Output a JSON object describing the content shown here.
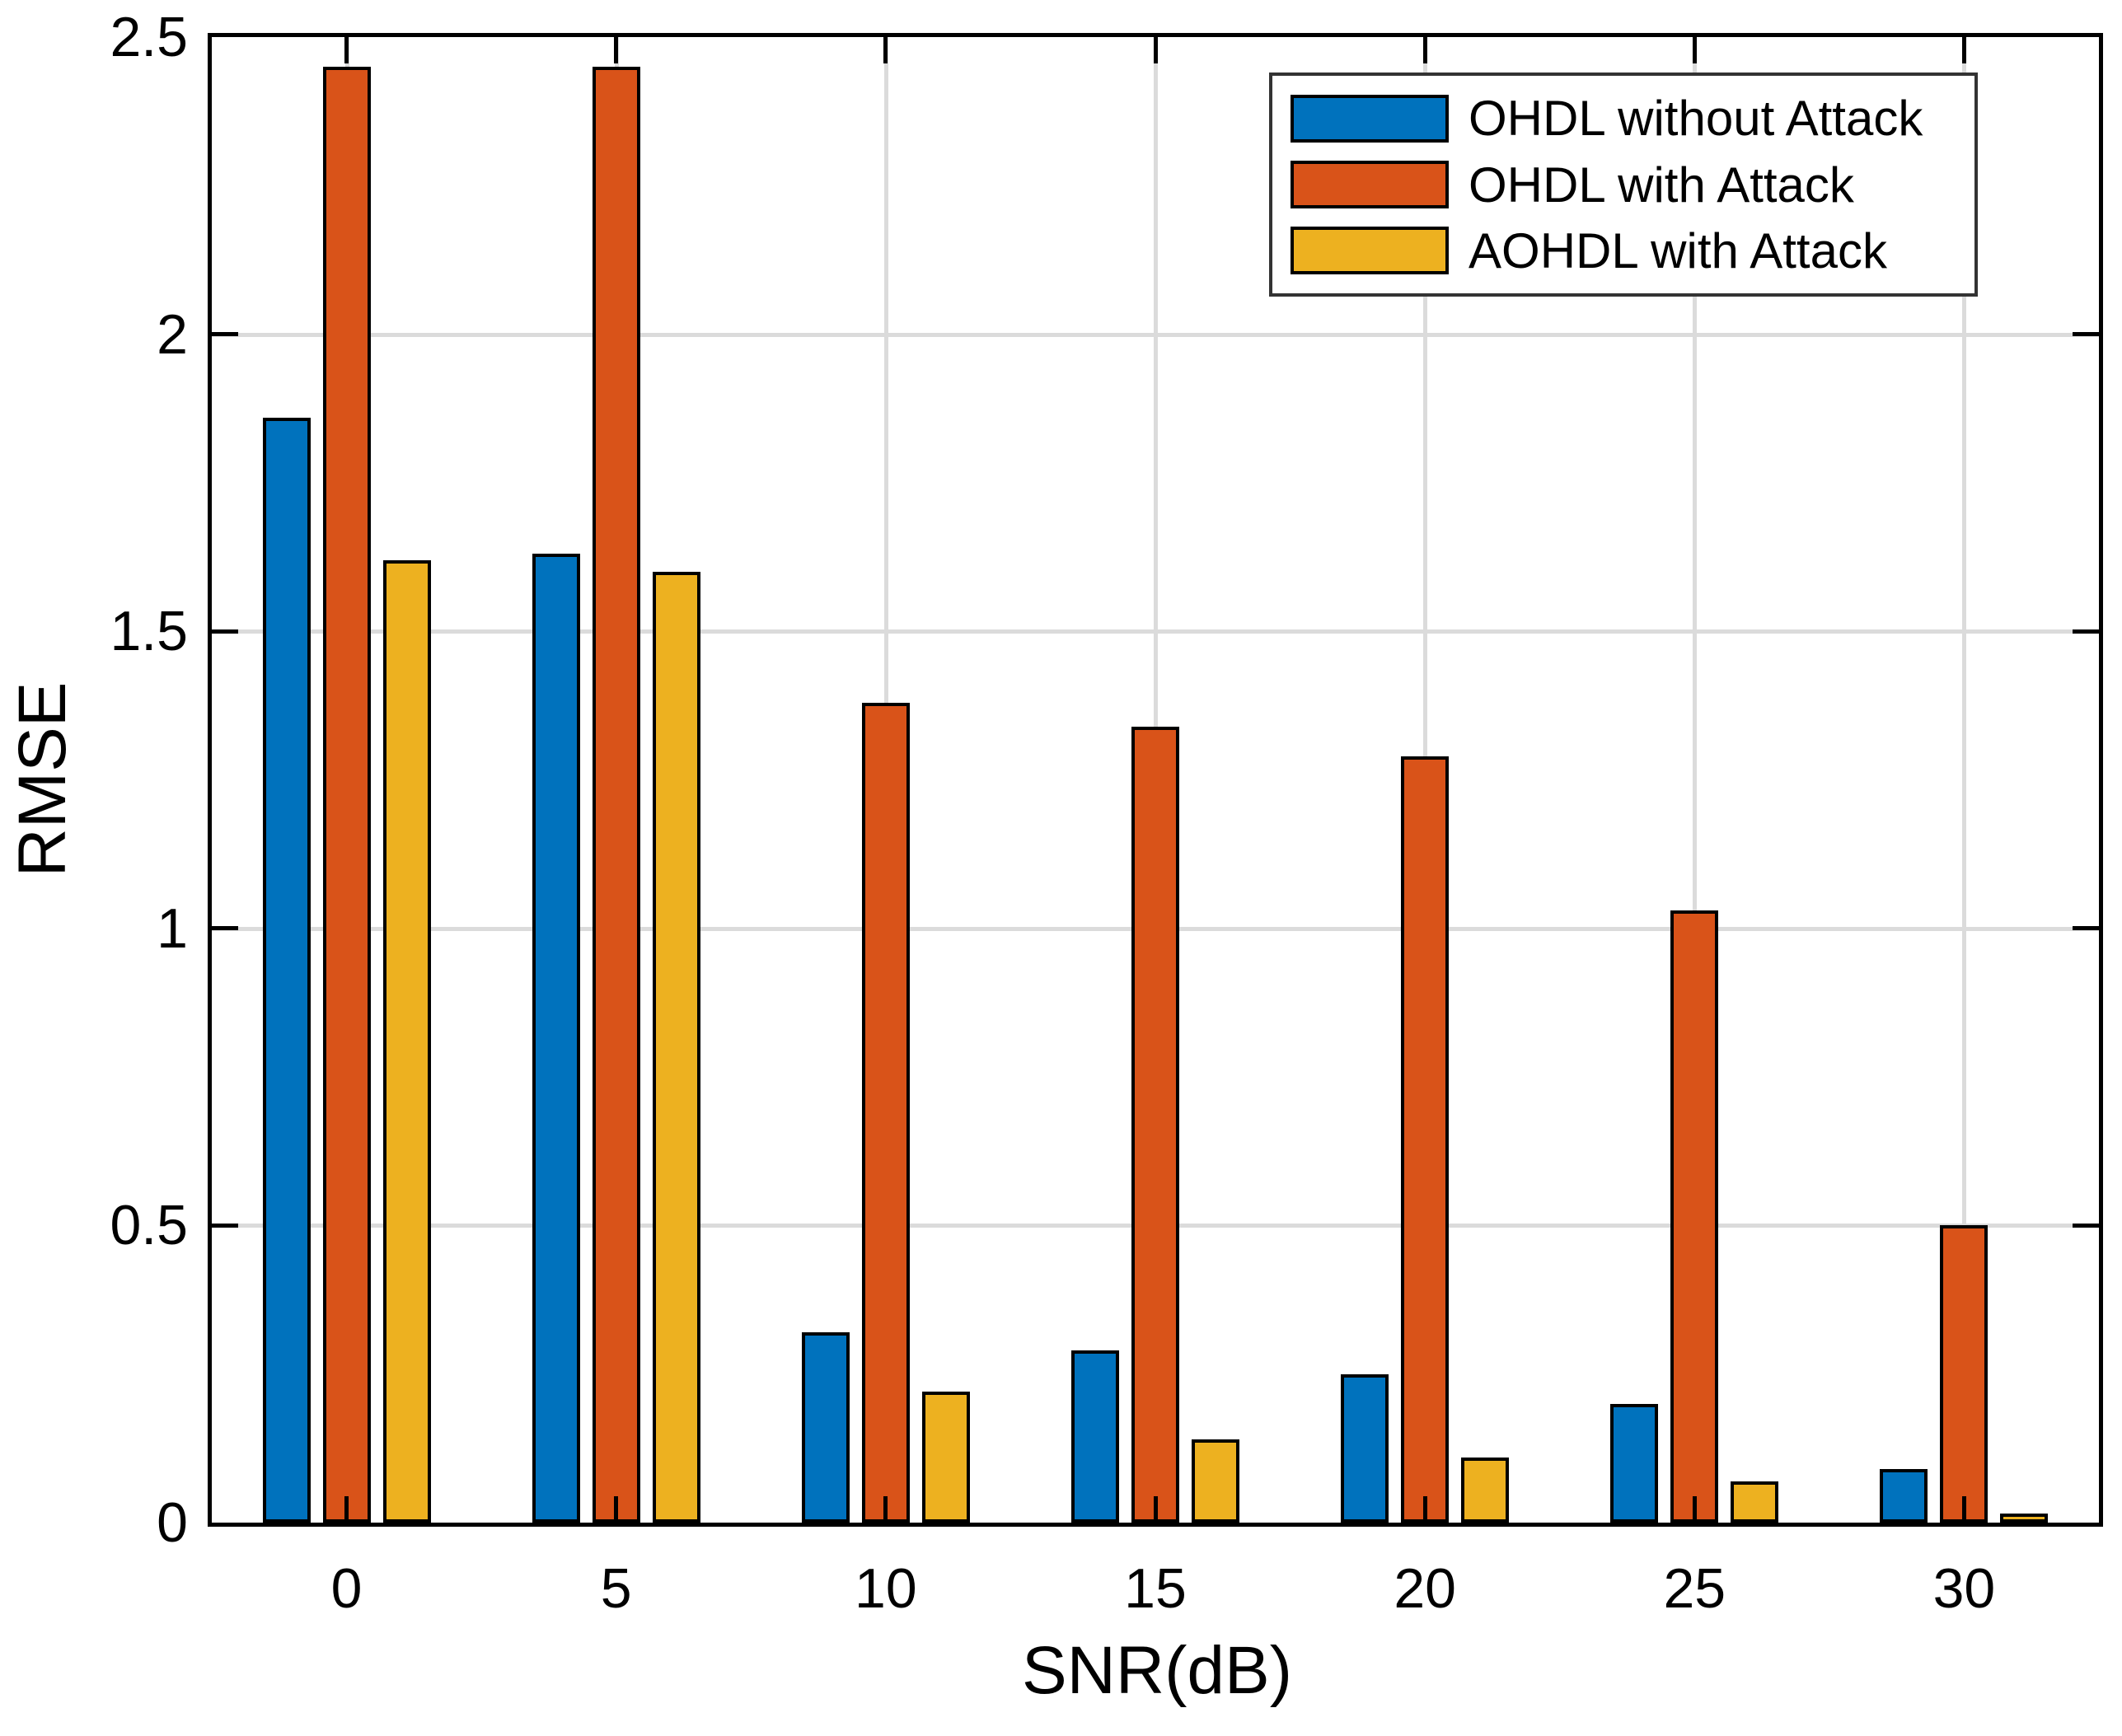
{
  "chart_data": {
    "type": "bar",
    "title": "",
    "xlabel": "SNR(dB)",
    "ylabel": "RMSE",
    "categories": [
      "0",
      "5",
      "10",
      "15",
      "20",
      "25",
      "30"
    ],
    "series": [
      {
        "name": "OHDL without Attack",
        "color": "#0072BD",
        "values": [
          1.86,
          1.63,
          0.32,
          0.29,
          0.25,
          0.2,
          0.09
        ]
      },
      {
        "name": "OHDL with Attack",
        "color": "#D95319",
        "values": [
          2.45,
          2.45,
          1.38,
          1.34,
          1.29,
          1.03,
          0.5
        ]
      },
      {
        "name": "AOHDL with Attack",
        "color": "#EDB120",
        "values": [
          1.62,
          1.6,
          0.22,
          0.14,
          0.11,
          0.07,
          0.015
        ]
      }
    ],
    "ylim": [
      0,
      2.5
    ],
    "y_ticks": [
      0,
      0.5,
      1,
      1.5,
      2,
      2.5
    ],
    "y_tick_labels": [
      "0",
      "0.5",
      "1",
      "1.5",
      "2",
      "2.5"
    ],
    "grid": true,
    "legend_position": "top-right",
    "bar_edge_color": "#000000",
    "axis_color": "#000000",
    "grid_color": "#DBDBDB",
    "background": "#FFFFFF"
  }
}
